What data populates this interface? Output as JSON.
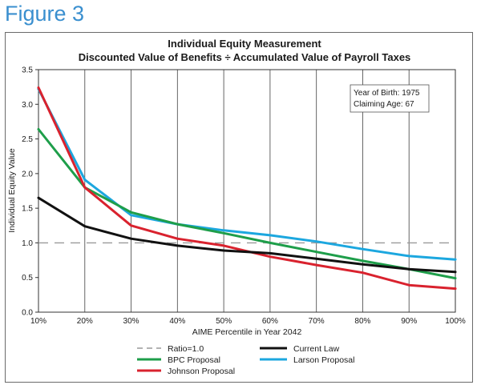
{
  "figure_title": "Figure 3",
  "chart_data": {
    "type": "line",
    "title": "Individual Equity Measurement",
    "subtitle": "Discounted Value of Benefits ÷ Accumulated Value of Payroll Taxes",
    "xlabel": "AIME Percentile in Year 2042",
    "ylabel": "Individual Equity Value",
    "categories": [
      "10%",
      "20%",
      "30%",
      "40%",
      "50%",
      "60%",
      "70%",
      "80%",
      "90%",
      "100%"
    ],
    "ylim": [
      0,
      3.5
    ],
    "yticks": [
      "0.0",
      "0.5",
      "1.0",
      "1.5",
      "2.0",
      "2.5",
      "3.0",
      "3.5"
    ],
    "grid": "vertical",
    "annotation": [
      "Year of Birth: 1975",
      "Claiming Age: 67"
    ],
    "reference_line": {
      "name": "Ratio=1.0",
      "value": 1.0,
      "color": "#999999"
    },
    "series": [
      {
        "name": "Current Law",
        "color": "#111111",
        "values": [
          1.65,
          1.24,
          1.06,
          0.96,
          0.89,
          0.85,
          0.77,
          0.69,
          0.62,
          0.58
        ]
      },
      {
        "name": "BPC Proposal",
        "color": "#1e9e4a",
        "values": [
          2.64,
          1.8,
          1.44,
          1.27,
          1.14,
          1.0,
          0.87,
          0.74,
          0.62,
          0.49
        ]
      },
      {
        "name": "Larson Proposal",
        "color": "#1ca7df",
        "values": [
          3.22,
          1.91,
          1.4,
          1.27,
          1.18,
          1.11,
          1.02,
          0.91,
          0.81,
          0.76
        ]
      },
      {
        "name": "Johnson Proposal",
        "color": "#d9222e",
        "values": [
          3.24,
          1.8,
          1.25,
          1.06,
          0.96,
          0.8,
          0.68,
          0.57,
          0.39,
          0.34
        ]
      }
    ],
    "legend_position": "bottom"
  }
}
